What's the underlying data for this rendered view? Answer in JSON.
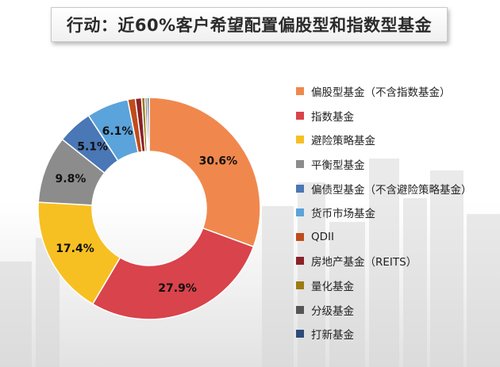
{
  "title": "行动：近60%客户希望配置偏股型和指数型基金",
  "chart_data": {
    "type": "pie",
    "donut": true,
    "legend_position": "right",
    "slices": [
      {
        "label": "偏股型基金（不含指数基金）",
        "value": 30.6,
        "display": "30.6%",
        "color": "#F0884D"
      },
      {
        "label": "指数基金",
        "value": 27.9,
        "display": "27.9%",
        "color": "#D9434B"
      },
      {
        "label": "避险策略基金",
        "value": 17.4,
        "display": "17.4%",
        "color": "#F7C022"
      },
      {
        "label": "平衡型基金",
        "value": 9.8,
        "display": "9.8%",
        "color": "#8C8C8C"
      },
      {
        "label": "偏债型基金（不含避险策略基金）",
        "value": 5.1,
        "display": "5.1%",
        "color": "#4A77B5"
      },
      {
        "label": "货币市场基金",
        "value": 6.1,
        "display": "6.1%",
        "color": "#5BA3DB"
      },
      {
        "label": "QDII",
        "value": 1.1,
        "display": "",
        "color": "#BF4C1C"
      },
      {
        "label": "房地产基金（REITS）",
        "value": 0.9,
        "display": "",
        "color": "#8A2228"
      },
      {
        "label": "量化基金",
        "value": 0.5,
        "display": "",
        "color": "#9C7B12"
      },
      {
        "label": "分级基金",
        "value": 0.3,
        "display": "",
        "color": "#555555"
      },
      {
        "label": "打新基金",
        "value": 0.3,
        "display": "",
        "color": "#2C4A7A"
      }
    ]
  }
}
